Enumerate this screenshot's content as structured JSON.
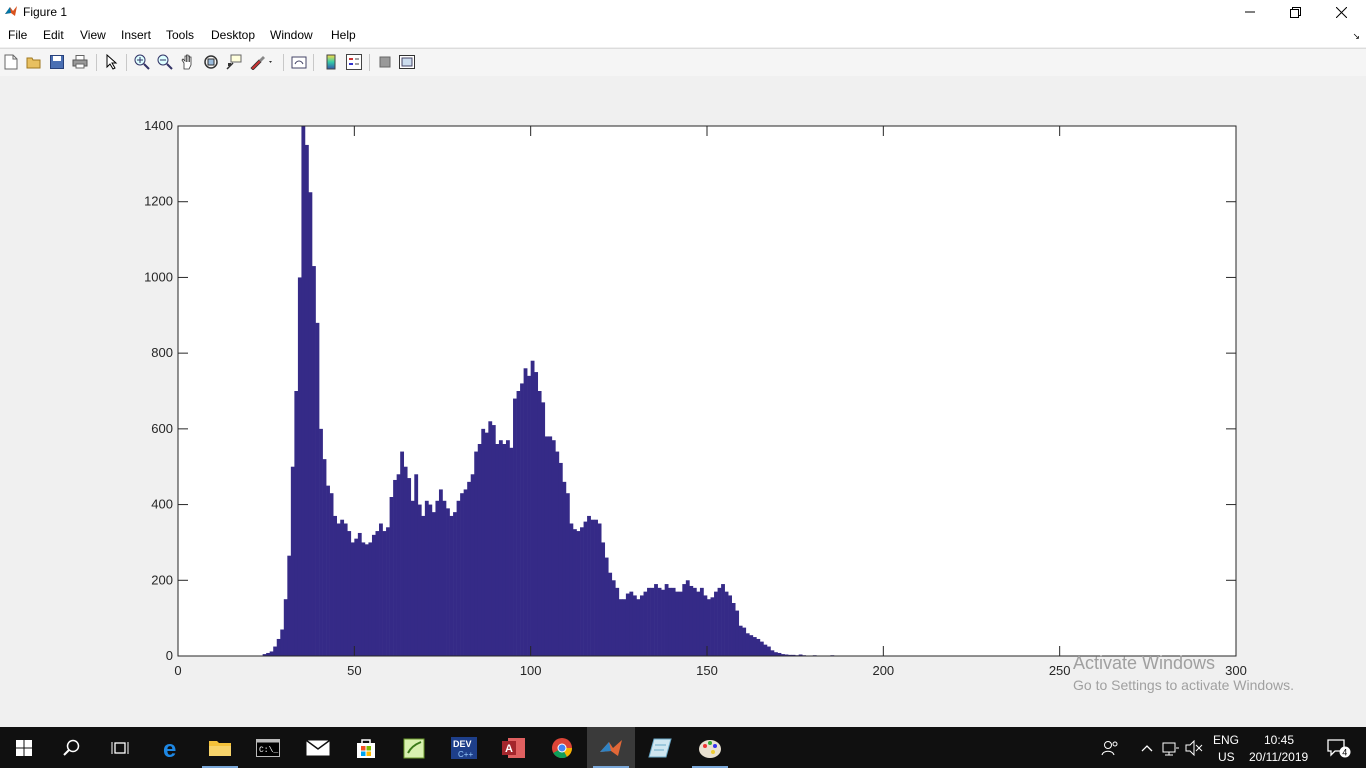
{
  "window": {
    "title": "Figure 1",
    "controls": [
      "minimize",
      "restore",
      "close"
    ]
  },
  "menubar": {
    "items": [
      "File",
      "Edit",
      "View",
      "Insert",
      "Tools",
      "Desktop",
      "Window",
      "Help"
    ]
  },
  "toolbar": {
    "icons": [
      "new-figure-icon",
      "open-file-icon",
      "save-icon",
      "print-icon",
      "edit-plot-icon",
      "zoom-in-icon",
      "zoom-out-icon",
      "pan-icon",
      "rotate-3d-icon",
      "data-cursor-icon",
      "brush-icon",
      "link-plot-icon",
      "colorbar-icon",
      "legend-icon",
      "hide-plot-tools-icon",
      "show-plot-tools-icon"
    ]
  },
  "chart_data": {
    "type": "bar",
    "title": "",
    "xlabel": "",
    "ylabel": "",
    "xlim": [
      0,
      300
    ],
    "ylim": [
      0,
      1400
    ],
    "xticks": [
      "0",
      "50",
      "100",
      "150",
      "200",
      "250",
      "300"
    ],
    "yticks": [
      "0",
      "200",
      "400",
      "600",
      "800",
      "1000",
      "1200",
      "1400"
    ],
    "bar_color": "#352a87",
    "bin_start": 24,
    "bin_width": 1,
    "values": [
      5,
      8,
      12,
      25,
      45,
      70,
      150,
      265,
      500,
      700,
      1000,
      1400,
      1350,
      1225,
      1030,
      880,
      600,
      520,
      450,
      430,
      370,
      350,
      360,
      350,
      330,
      300,
      310,
      325,
      300,
      295,
      300,
      320,
      330,
      350,
      330,
      340,
      420,
      465,
      480,
      540,
      500,
      470,
      410,
      480,
      400,
      370,
      410,
      400,
      380,
      410,
      440,
      410,
      390,
      370,
      380,
      410,
      430,
      440,
      460,
      480,
      540,
      560,
      600,
      590,
      620,
      610,
      560,
      570,
      560,
      570,
      550,
      680,
      700,
      720,
      760,
      740,
      780,
      750,
      700,
      670,
      580,
      580,
      570,
      540,
      510,
      460,
      430,
      350,
      335,
      330,
      340,
      355,
      370,
      360,
      360,
      350,
      300,
      260,
      220,
      200,
      180,
      150,
      150,
      165,
      170,
      160,
      150,
      160,
      170,
      180,
      180,
      190,
      180,
      175,
      190,
      180,
      180,
      170,
      170,
      190,
      200,
      185,
      180,
      170,
      180,
      160,
      150,
      155,
      170,
      180,
      190,
      170,
      160,
      140,
      120,
      80,
      75,
      60,
      55,
      50,
      45,
      38,
      30,
      25,
      15,
      10,
      8,
      5,
      4,
      3,
      3,
      2,
      4,
      2,
      1,
      1,
      2,
      1,
      0,
      1,
      0,
      2,
      1,
      0,
      1
    ],
    "grid": false,
    "box": true
  },
  "watermark": {
    "line1": "Activate Windows",
    "line2": "Go to Settings to activate Windows."
  },
  "taskbar": {
    "apps": [
      "start-icon",
      "search-icon",
      "task-view-icon",
      "edge-icon",
      "file-explorer-icon",
      "command-prompt-icon",
      "mail-icon",
      "store-icon",
      "notepad-plus-icon",
      "dev-cpp-icon",
      "access-icon",
      "chrome-icon",
      "matlab-icon",
      "notes-icon",
      "paint-icon"
    ],
    "language": "ENG",
    "region": "US",
    "time": "10:45",
    "date": "20/11/2019",
    "notifications": "4"
  },
  "colors": {
    "accent_bar": "#352a87",
    "taskbar": "#101010",
    "figure_bg": "#f0f0f0"
  }
}
